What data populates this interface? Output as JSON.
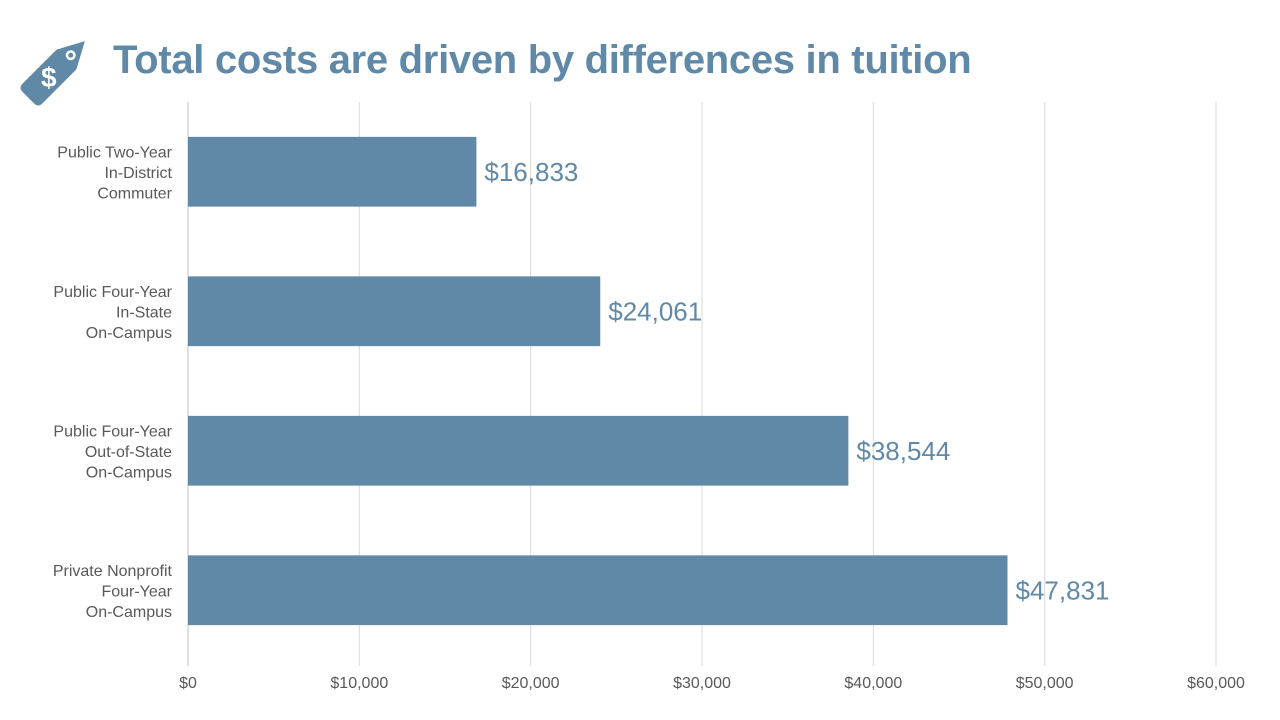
{
  "title": "Total costs are driven by differences in tuition",
  "icon": "price-tag-dollar-icon",
  "colors": {
    "accent": "#6089a8",
    "bar": "#6089a8",
    "grid": "#d9d9d9",
    "axis_text": "#595959"
  },
  "chart_data": {
    "type": "bar",
    "orientation": "horizontal",
    "categories": [
      [
        "Public Two-Year",
        "In-District",
        "Commuter"
      ],
      [
        "Public Four-Year",
        "In-State",
        "On-Campus"
      ],
      [
        "Public Four-Year",
        "Out-of-State",
        "On-Campus"
      ],
      [
        "Private Nonprofit",
        "Four-Year",
        "On-Campus"
      ]
    ],
    "values": [
      16833,
      24061,
      38544,
      47831
    ],
    "value_labels": [
      "$16,833",
      "$24,061",
      "$38,544",
      "$47,831"
    ],
    "xlim": [
      0,
      60000
    ],
    "xticks": [
      0,
      10000,
      20000,
      30000,
      40000,
      50000,
      60000
    ],
    "xtick_labels": [
      "$0",
      "$10,000",
      "$20,000",
      "$30,000",
      "$40,000",
      "$50,000",
      "$60,000"
    ],
    "grid": true,
    "legend": "none"
  }
}
